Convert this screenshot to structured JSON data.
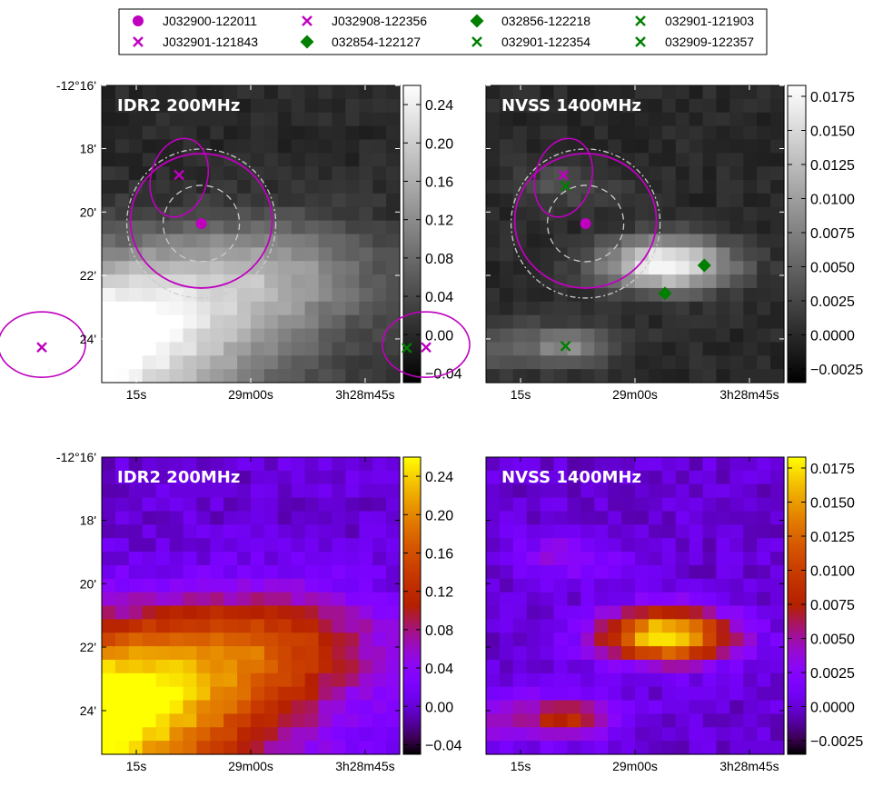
{
  "legend": {
    "entries": [
      {
        "label": "J032900-122011",
        "marker": "circle",
        "color": "#bf00bf"
      },
      {
        "label": "J032901-121843",
        "marker": "x",
        "color": "#bf00bf"
      },
      {
        "label": "J032908-122356",
        "marker": "x",
        "color": "#bf00bf"
      },
      {
        "label": "032854-122127",
        "marker": "diamond",
        "color": "#007f00"
      },
      {
        "label": "032856-122218",
        "marker": "diamond",
        "color": "#007f00"
      },
      {
        "label": "032901-122354",
        "marker": "x",
        "color": "#007f00"
      },
      {
        "label": "032901-121903",
        "marker": "x",
        "color": "#007f00"
      },
      {
        "label": "032909-122357",
        "marker": "x",
        "color": "#007f00"
      }
    ]
  },
  "axes": {
    "x_ticks": [
      "15s",
      "29m00s",
      "3h28m45s"
    ],
    "y_ticks": [
      "-12°16'",
      "18'",
      "20'",
      "22'",
      "24'"
    ]
  },
  "colors": {
    "magenta": "#bf00bf",
    "green": "#007f00",
    "dashed": "#cccccc"
  },
  "chart_data": [
    {
      "type": "heatmap",
      "label": "IDR2 200MHz",
      "colormap": "gray",
      "colorbar_ticks": [
        "0.24",
        "0.20",
        "0.16",
        "0.12",
        "0.08",
        "0.04",
        "0.00",
        "−0.04"
      ],
      "vmin": -0.05,
      "vmax": 0.26,
      "x": [
        3.484722,
        3.480556
      ],
      "y": [
        -12.2667,
        -12.4167
      ],
      "sources": [
        {
          "label": "J032900-122011",
          "marker": "circle",
          "ra_h": 3.48333,
          "dec_deg": -12.3364
        },
        {
          "label": "J032901-121843",
          "marker": "x",
          "ra_h": 3.48364,
          "dec_deg": -12.3119
        },
        {
          "label": "J032908-122356",
          "marker": "x",
          "ra_h": 3.48556,
          "dec_deg": -12.3989
        }
      ],
      "source_peaks": [
        {
          "ra_h": 3.4856,
          "dec_deg": -12.4,
          "amp": 0.31,
          "sigma_arcmin": 1.7
        },
        {
          "ra_h": 3.4825,
          "dec_deg": -12.36,
          "amp": 0.12,
          "sigma_arcmin": 1.1
        },
        {
          "ra_h": 3.484,
          "dec_deg": -12.38,
          "amp": 0.06,
          "sigma_arcmin": 1.3
        }
      ]
    },
    {
      "type": "heatmap",
      "label": "NVSS 1400MHz",
      "colormap": "gray",
      "colorbar_ticks": [
        "0.0175",
        "0.0150",
        "0.0125",
        "0.0100",
        "0.0075",
        "0.0050",
        "0.0025",
        "0.0000",
        "−0.0025"
      ],
      "vmin": -0.0035,
      "vmax": 0.0183,
      "x": [
        3.484722,
        3.480556
      ],
      "y": [
        -12.2667,
        -12.4167
      ],
      "sources": [
        {
          "label": "J032900-122011",
          "marker": "circle",
          "ra_h": 3.48333,
          "dec_deg": -12.3364
        },
        {
          "label": "J032901-121843",
          "marker": "x",
          "ra_h": 3.48364,
          "dec_deg": -12.3119
        },
        {
          "label": "J032908-122356",
          "marker": "x",
          "ra_h": 3.48556,
          "dec_deg": -12.3989
        },
        {
          "label": "032854-122127",
          "marker": "diamond",
          "ra_h": 3.48167,
          "dec_deg": -12.3575
        },
        {
          "label": "032856-122218",
          "marker": "diamond",
          "ra_h": 3.48222,
          "dec_deg": -12.3717
        },
        {
          "label": "032901-122354",
          "marker": "x",
          "ra_h": 3.48361,
          "dec_deg": -12.3983
        },
        {
          "label": "032901-121903",
          "marker": "x",
          "ra_h": 3.48361,
          "dec_deg": -12.3175
        },
        {
          "label": "032909-122357",
          "marker": "x",
          "ra_h": 3.48583,
          "dec_deg": -12.3992
        }
      ],
      "source_peaks": [
        {
          "ra_h": 3.4822,
          "dec_deg": -12.357,
          "amp": 0.0185,
          "sigma_arcmin": 0.55
        },
        {
          "ra_h": 3.4858,
          "dec_deg": -12.399,
          "amp": 0.0195,
          "sigma_arcmin": 0.55
        },
        {
          "ra_h": 3.4836,
          "dec_deg": -12.398,
          "amp": 0.0085,
          "sigma_arcmin": 0.45
        },
        {
          "ra_h": 3.4836,
          "dec_deg": -12.317,
          "amp": 0.0035,
          "sigma_arcmin": 0.45
        }
      ]
    },
    {
      "type": "heatmap",
      "label": "IDR2 200MHz",
      "colormap": "gnuplot",
      "colorbar_ticks": [
        "0.24",
        "0.20",
        "0.16",
        "0.12",
        "0.08",
        "0.04",
        "0.00",
        "−0.04"
      ],
      "vmin": -0.05,
      "vmax": 0.26,
      "x": [
        3.484722,
        3.480556
      ],
      "y": [
        -12.2667,
        -12.4167
      ],
      "sources": [],
      "source_peaks": [
        {
          "ra_h": 3.4856,
          "dec_deg": -12.4,
          "amp": 0.31,
          "sigma_arcmin": 1.7
        },
        {
          "ra_h": 3.4825,
          "dec_deg": -12.36,
          "amp": 0.12,
          "sigma_arcmin": 1.1
        },
        {
          "ra_h": 3.484,
          "dec_deg": -12.38,
          "amp": 0.06,
          "sigma_arcmin": 1.3
        }
      ]
    },
    {
      "type": "heatmap",
      "label": "NVSS 1400MHz",
      "colormap": "gnuplot",
      "colorbar_ticks": [
        "0.0175",
        "0.0150",
        "0.0125",
        "0.0100",
        "0.0075",
        "0.0050",
        "0.0025",
        "0.0000",
        "−0.0025"
      ],
      "vmin": -0.0035,
      "vmax": 0.0183,
      "x": [
        3.484722,
        3.480556
      ],
      "y": [
        -12.2667,
        -12.4167
      ],
      "sources": [],
      "source_peaks": [
        {
          "ra_h": 3.4822,
          "dec_deg": -12.357,
          "amp": 0.0185,
          "sigma_arcmin": 0.55
        },
        {
          "ra_h": 3.4858,
          "dec_deg": -12.399,
          "amp": 0.0195,
          "sigma_arcmin": 0.55
        },
        {
          "ra_h": 3.4836,
          "dec_deg": -12.398,
          "amp": 0.0085,
          "sigma_arcmin": 0.45
        },
        {
          "ra_h": 3.4836,
          "dec_deg": -12.317,
          "amp": 0.0035,
          "sigma_arcmin": 0.45
        }
      ]
    }
  ]
}
